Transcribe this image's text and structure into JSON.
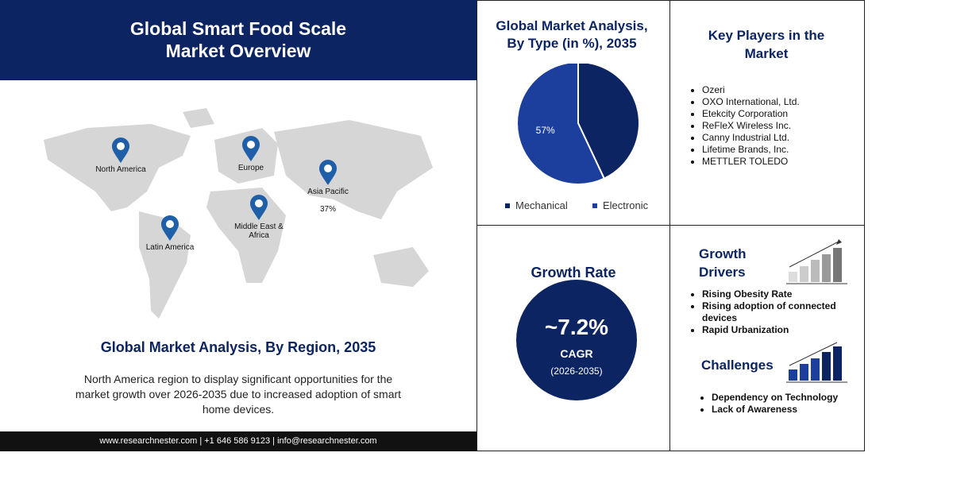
{
  "header": {
    "title": "Global Smart Food Scale Market Overview"
  },
  "map": {
    "regions": [
      {
        "label": "North America"
      },
      {
        "label": "Europe"
      },
      {
        "label": "Asia Pacific",
        "share": "37%"
      },
      {
        "label": "Middle East & Africa"
      },
      {
        "label": "Latin America"
      }
    ],
    "heading": "Global Market Analysis, By Region, 2035",
    "description": "North America region to display significant opportunities for the market growth over 2026-2035 due to increased adoption of smart home devices."
  },
  "footer": {
    "text": "www.researchnester.com | +1 646 586 9123 | info@researchnester.com"
  },
  "chart_data": {
    "type": "pie",
    "title": "Global Market Analysis, By Type (in %), 2035",
    "categories": [
      "Mechanical",
      "Electronic"
    ],
    "values": [
      43,
      57
    ],
    "value_labels": [
      null,
      "57%"
    ],
    "colors": [
      "#0c2461",
      "#1c3f9e"
    ]
  },
  "key_players": {
    "title": "Key Players in the Market",
    "items": [
      "Ozeri",
      "OXO International, Ltd.",
      "Etekcity Corporation",
      "ReFleX Wireless Inc.",
      "Canny Industrial Ltd.",
      "Lifetime Brands, Inc.",
      "METTLER TOLEDO"
    ]
  },
  "growth_rate": {
    "title": "Growth Rate",
    "value": "~7.2%",
    "label": "CAGR",
    "period": "(2026-2035)"
  },
  "growth_drivers": {
    "title": "Growth Drivers",
    "items": [
      "Rising Obesity Rate",
      "Rising adoption of connected devices",
      "Rapid Urbanization"
    ]
  },
  "challenges": {
    "title": "Challenges",
    "items": [
      "Dependency on Technology",
      "Lack of Awareness"
    ]
  }
}
